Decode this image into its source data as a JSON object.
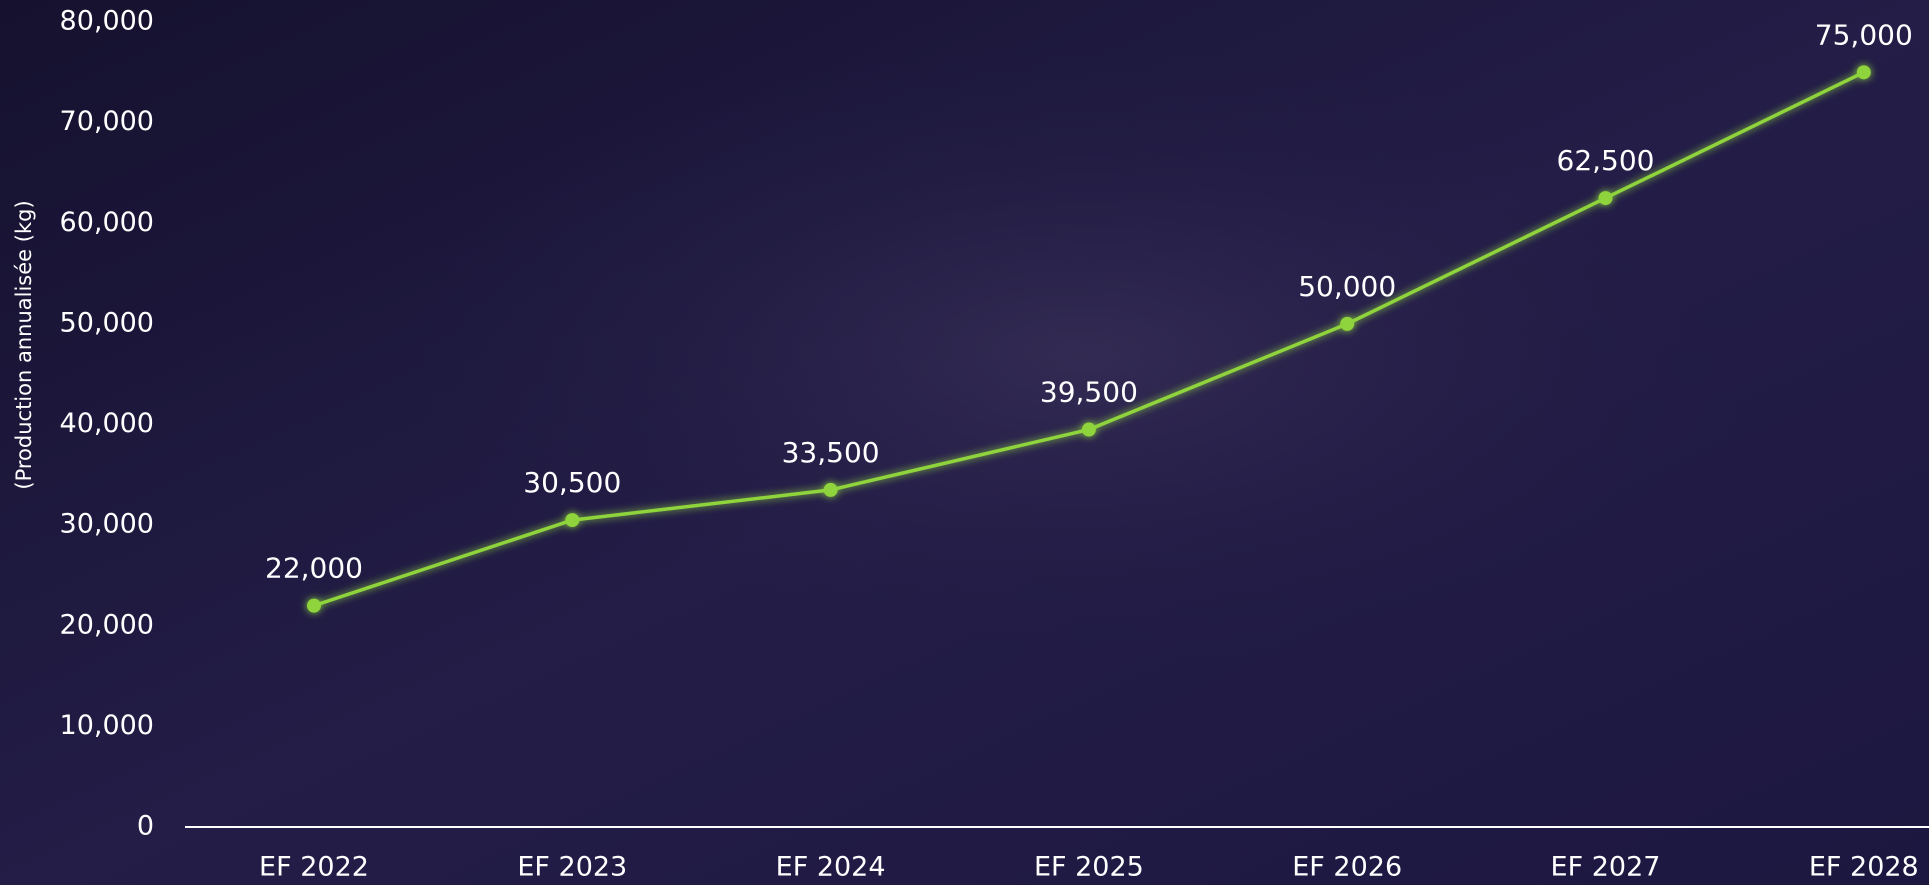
{
  "chart_data": {
    "type": "line",
    "y_label": "(Production annualisée (kg)",
    "categories": [
      "EF 2022",
      "EF 2023",
      "EF 2024",
      "EF 2025",
      "EF 2026",
      "EF 2027",
      "EF 2028"
    ],
    "series": [
      {
        "name": null,
        "color": "#8fd43c",
        "values": [
          22000,
          30500,
          33500,
          39500,
          50000,
          62500,
          75000
        ],
        "value_labels": [
          "22,000",
          "30,500",
          "33,500",
          "39,500",
          "50,000",
          "62,500",
          "75,000"
        ]
      }
    ],
    "ylim": [
      0,
      80000
    ],
    "yticks": [
      0,
      {
        "value": 10000,
        "label": "10,000"
      },
      {
        "value": 20000,
        "label": "20,000"
      },
      {
        "value": 30000,
        "label": "30,000"
      },
      {
        "value": 40000,
        "label": "40,000"
      },
      {
        "value": 50000,
        "label": "50,000"
      },
      {
        "value": 60000,
        "label": "60,000"
      },
      {
        "value": 70000,
        "label": "70,000"
      },
      {
        "value": 80000,
        "label": "80,000"
      }
    ],
    "grid": false
  }
}
